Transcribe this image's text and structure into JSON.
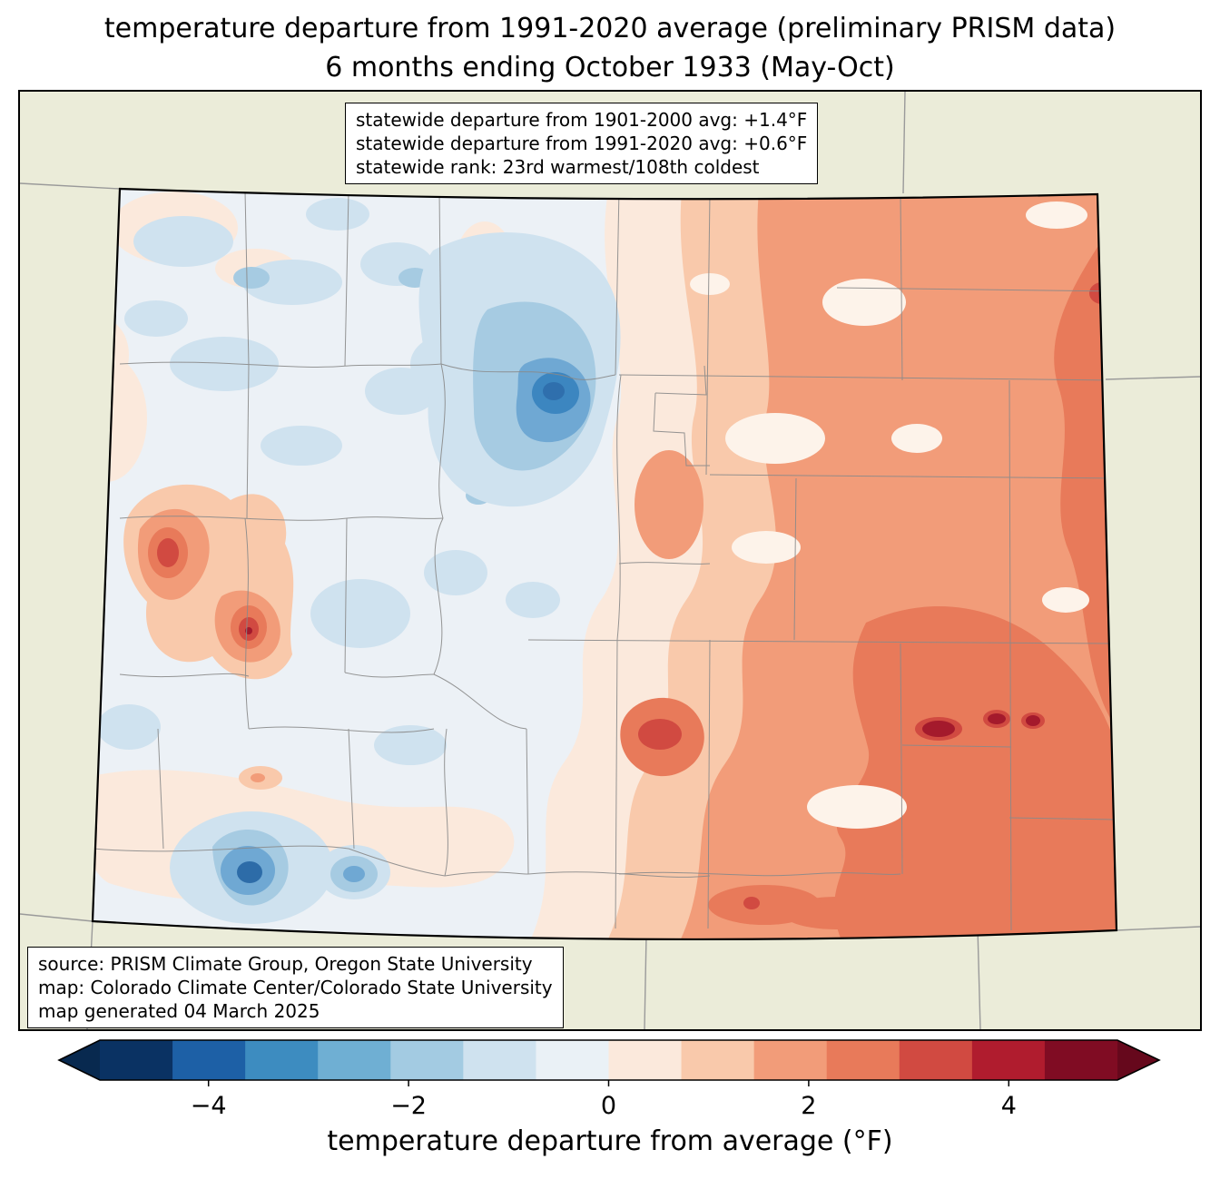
{
  "title": {
    "line1": "temperature departure from 1991-2020 average (preliminary PRISM data)",
    "line2": "6 months ending October 1933 (May-Oct)"
  },
  "stats_box": {
    "lines": [
      "statewide departure from 1901-2000 avg: +1.4°F",
      "statewide departure from 1991-2020 avg: +0.6°F",
      "statewide rank: 23rd warmest/108th coldest"
    ]
  },
  "source_box": {
    "lines": [
      "source: PRISM Climate Group, Oregon State University",
      "map: Colorado Climate Center/Colorado State University",
      "map generated 04 March 2025"
    ]
  },
  "colorbar": {
    "label": "temperature departure from average (°F)",
    "ticks": [
      {
        "value": -4,
        "label": "−4"
      },
      {
        "value": -2,
        "label": "−2"
      },
      {
        "value": 0,
        "label": "0"
      },
      {
        "value": 2,
        "label": "2"
      },
      {
        "value": 4,
        "label": "4"
      }
    ],
    "segment_colors": [
      "#0a3263",
      "#1d60a6",
      "#3d8cc0",
      "#6fafd3",
      "#a3cbe2",
      "#cfe2ef",
      "#eaf1f6",
      "#fbe9dc",
      "#f9c9ab",
      "#f29c79",
      "#e87a5a",
      "#d14a41",
      "#b01c2e",
      "#800c23"
    ],
    "under_color": "#08294f",
    "over_color": "#66081c"
  },
  "map": {
    "region": "Colorado",
    "background_color": "#ebecd9",
    "state_border_color": "#000000",
    "county_line_color": "#8a8a8a"
  }
}
